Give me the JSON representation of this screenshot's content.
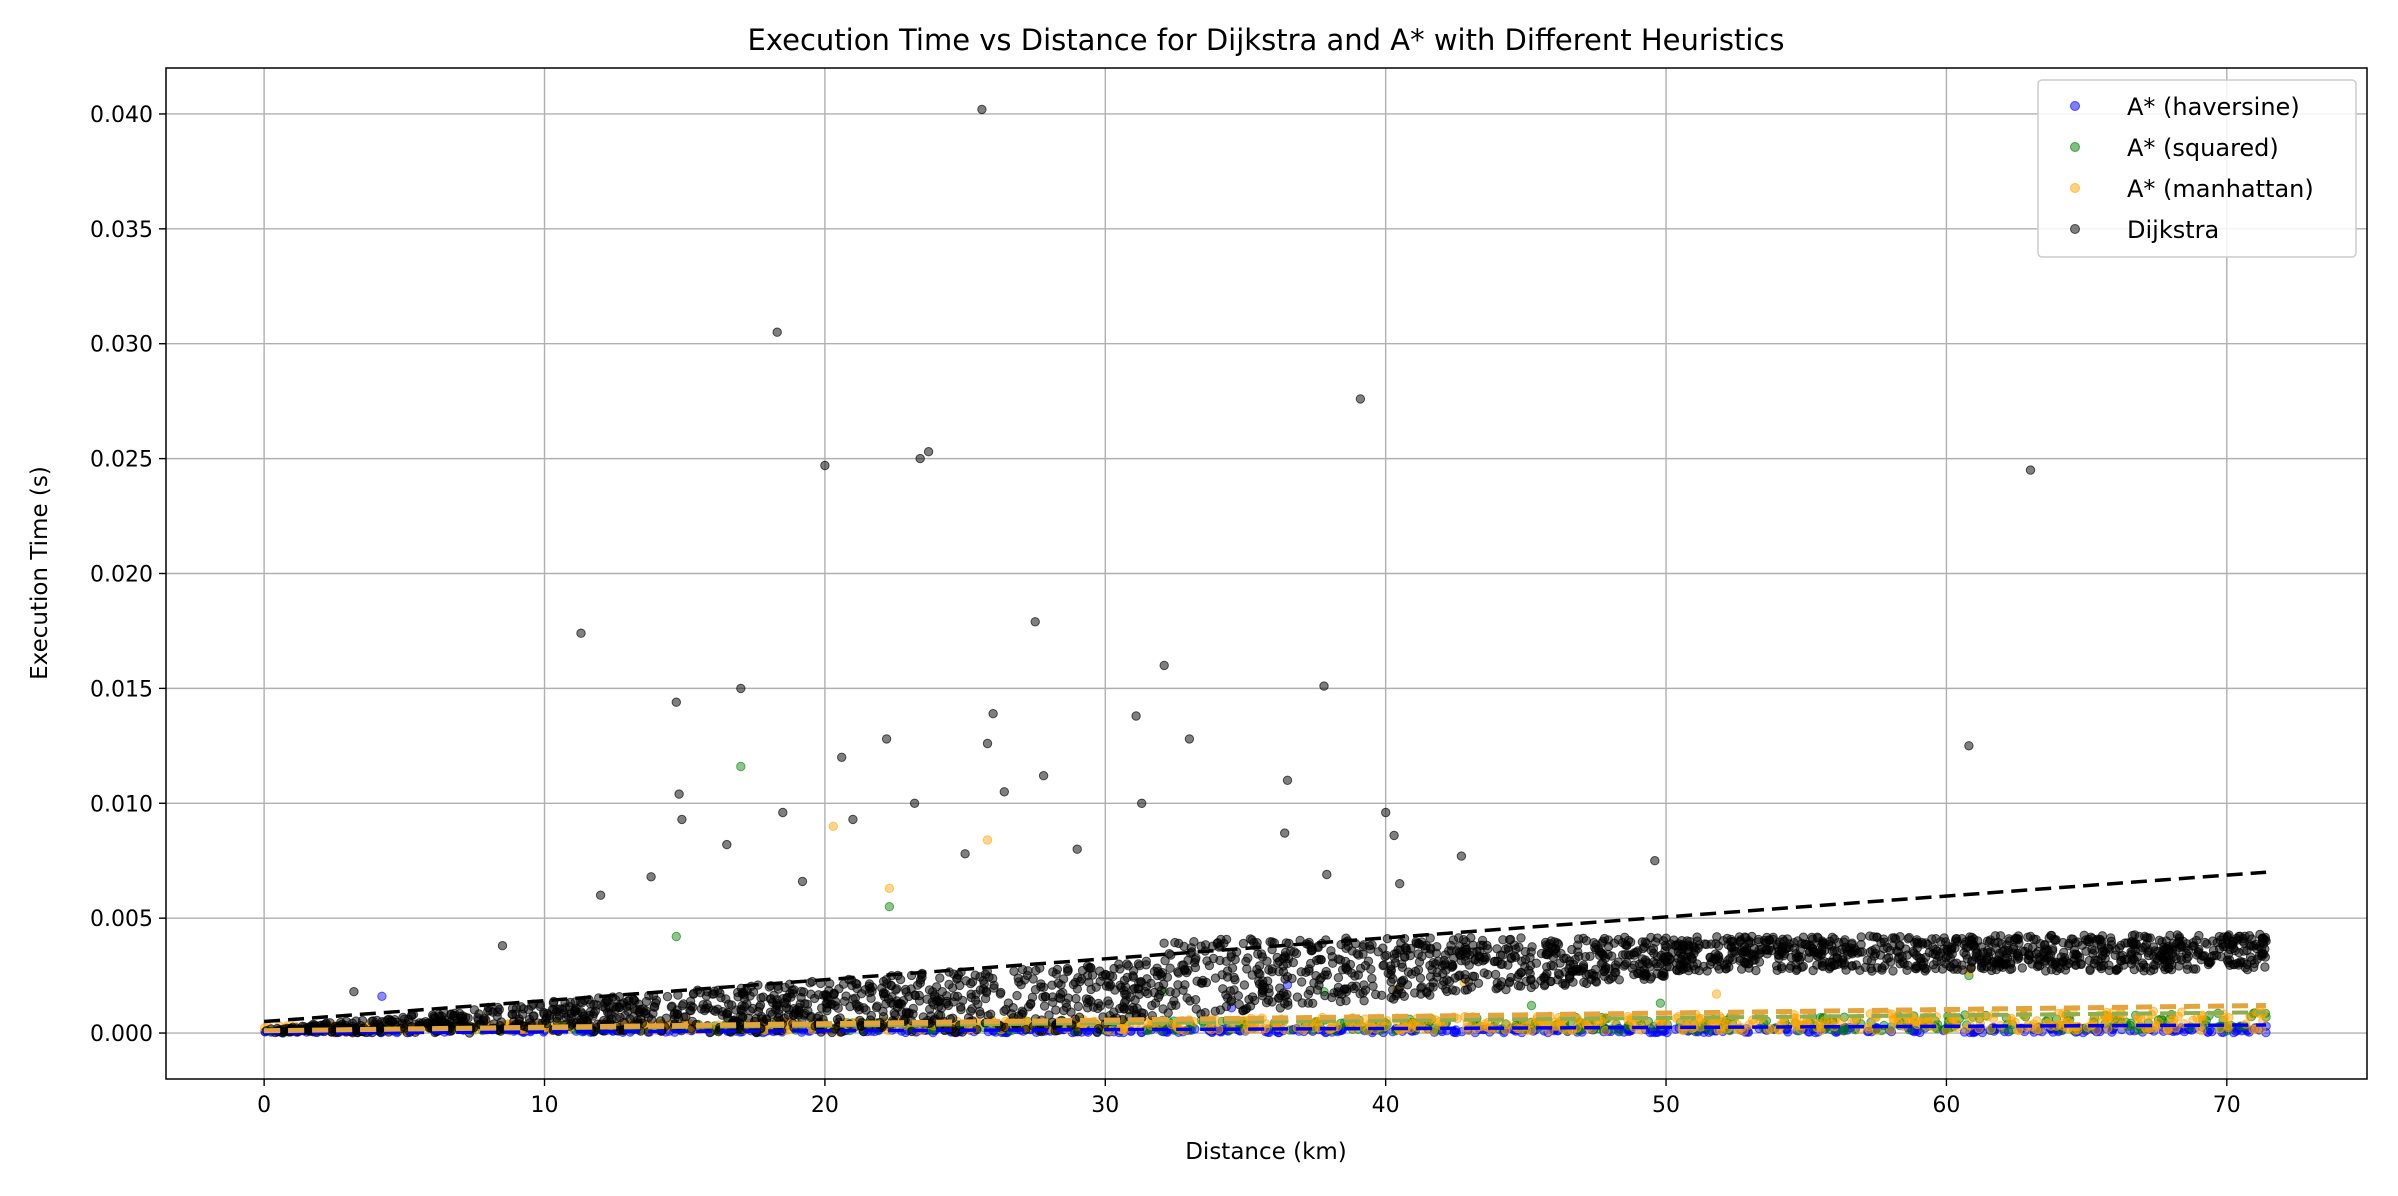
{
  "chart_data": {
    "type": "scatter",
    "title": "Execution Time vs Distance for Dijkstra and A* with Different Heuristics",
    "xlabel": "Distance (km)",
    "ylabel": "Execution Time (s)",
    "xlim": [
      -3.5,
      75
    ],
    "ylim": [
      -0.002,
      0.042
    ],
    "xticks": [
      0,
      10,
      20,
      30,
      40,
      50,
      60,
      70
    ],
    "yticks": [
      "0.000",
      "0.005",
      "0.010",
      "0.015",
      "0.020",
      "0.025",
      "0.030",
      "0.035",
      "0.040"
    ],
    "grid": true,
    "legend_position": "top-right",
    "series": [
      {
        "name": "A* (haversine)",
        "color": "#0000ff",
        "main_y": [
          0.0,
          0.0003
        ],
        "outliers": [
          [
            4.2,
            0.0016
          ],
          [
            34.5,
            0.0011
          ],
          [
            36.5,
            0.0021
          ],
          [
            71.4,
            0.0003
          ]
        ],
        "trend": [
          [
            0,
            0.0
          ],
          [
            71.4,
            0.00035
          ]
        ]
      },
      {
        "name": "A* (squared)",
        "color": "#008000",
        "main_y": [
          0.0,
          0.0009
        ],
        "outliers": [
          [
            14.7,
            0.0042
          ],
          [
            17.0,
            0.0116
          ],
          [
            22.3,
            0.0055
          ],
          [
            32.1,
            0.0018
          ],
          [
            37.8,
            0.0018
          ],
          [
            45.2,
            0.0012
          ],
          [
            49.8,
            0.0013
          ],
          [
            60.8,
            0.0025
          ],
          [
            71.4,
            0.0007
          ]
        ],
        "trend": [
          [
            0,
            0.0001
          ],
          [
            71.4,
            0.0009
          ]
        ]
      },
      {
        "name": "A* (manhattan)",
        "color": "#ffa500",
        "main_y": [
          0.0,
          0.0012
        ],
        "outliers": [
          [
            20.3,
            0.009
          ],
          [
            22.3,
            0.0063
          ],
          [
            25.8,
            0.0084
          ],
          [
            40.4,
            0.0019
          ],
          [
            42.8,
            0.0022
          ],
          [
            51.8,
            0.0017
          ],
          [
            60.8,
            0.0027
          ]
        ],
        "trend": [
          [
            0,
            0.0001
          ],
          [
            71.4,
            0.0012
          ]
        ]
      },
      {
        "name": "Dijkstra",
        "color": "#000000",
        "main_y": [
          0.0,
          0.0044
        ],
        "outliers": [
          [
            3.2,
            0.0018
          ],
          [
            8.5,
            0.0038
          ],
          [
            11.3,
            0.0174
          ],
          [
            12.0,
            0.006
          ],
          [
            13.8,
            0.0068
          ],
          [
            14.7,
            0.0144
          ],
          [
            14.8,
            0.0104
          ],
          [
            14.9,
            0.0093
          ],
          [
            16.5,
            0.0082
          ],
          [
            17.0,
            0.015
          ],
          [
            18.3,
            0.0305
          ],
          [
            18.5,
            0.0096
          ],
          [
            19.2,
            0.0066
          ],
          [
            20.0,
            0.0247
          ],
          [
            20.6,
            0.012
          ],
          [
            21.0,
            0.0093
          ],
          [
            22.2,
            0.0128
          ],
          [
            23.2,
            0.01
          ],
          [
            23.4,
            0.025
          ],
          [
            23.7,
            0.0253
          ],
          [
            25.0,
            0.0078
          ],
          [
            25.6,
            0.0402
          ],
          [
            25.8,
            0.0126
          ],
          [
            26.0,
            0.0139
          ],
          [
            26.4,
            0.0105
          ],
          [
            27.5,
            0.0179
          ],
          [
            27.8,
            0.0112
          ],
          [
            29.0,
            0.008
          ],
          [
            31.1,
            0.0138
          ],
          [
            31.3,
            0.01
          ],
          [
            32.1,
            0.016
          ],
          [
            33.0,
            0.0128
          ],
          [
            36.4,
            0.0087
          ],
          [
            36.5,
            0.011
          ],
          [
            37.8,
            0.0151
          ],
          [
            37.9,
            0.0069
          ],
          [
            39.1,
            0.0276
          ],
          [
            40.0,
            0.0096
          ],
          [
            40.3,
            0.0086
          ],
          [
            40.5,
            0.0065
          ],
          [
            42.7,
            0.0077
          ],
          [
            49.6,
            0.0075
          ],
          [
            60.8,
            0.0125
          ],
          [
            63.0,
            0.0245
          ],
          [
            69.5,
            0.004
          ],
          [
            71.4,
            0.004
          ]
        ],
        "trend": [
          [
            0,
            0.0005
          ],
          [
            71.4,
            0.007
          ]
        ]
      }
    ]
  }
}
